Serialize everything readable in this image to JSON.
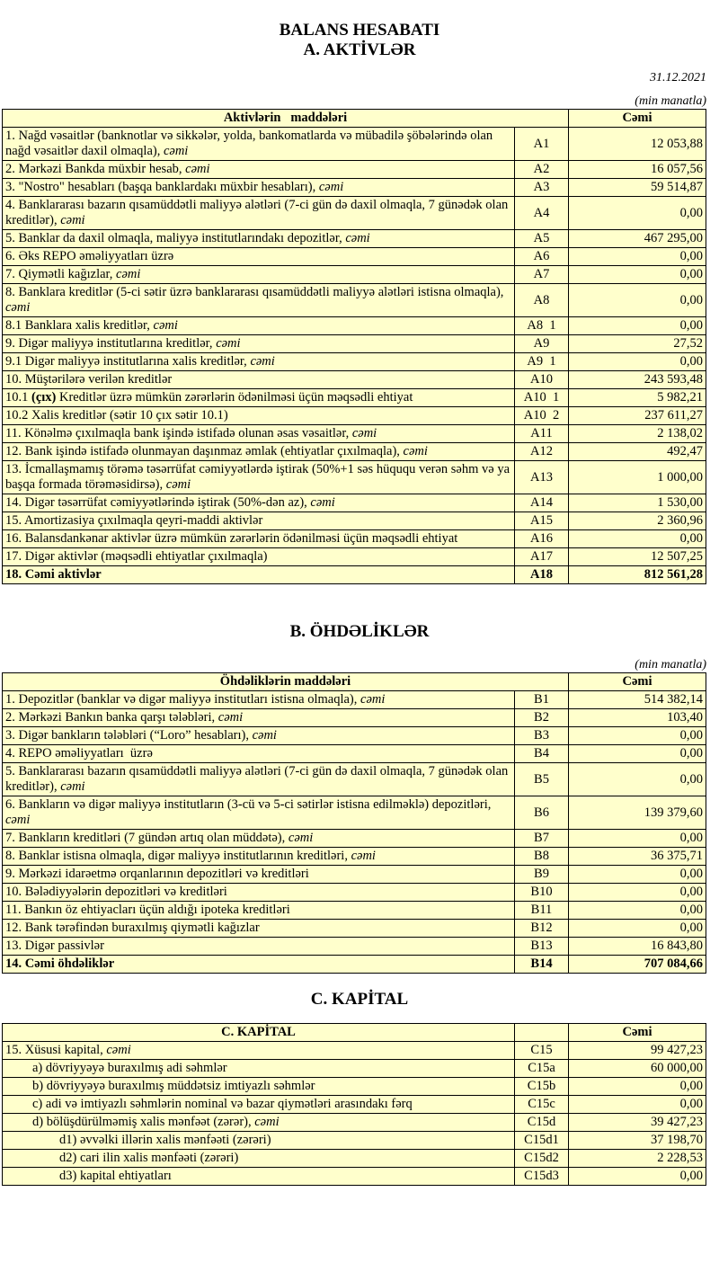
{
  "header": {
    "title": "BALANS HESABATI",
    "subtitle": "A. AKTİVLƏR",
    "date": "31.12.2021",
    "unit": "(min manatla)"
  },
  "assets": {
    "col_item": "Aktivlərin   maddələri",
    "col_total": "Cəmi",
    "rows": [
      {
        "parts": [
          {
            "t": "1. Nağd vəsaitlər (banknotlar və sikkələr, yolda, bankomatlarda və mübadilə şöbələrində olan nağd vəsaitlər daxil olmaqla), "
          },
          {
            "t": "cəmi",
            "s": "i"
          }
        ],
        "code": "A1",
        "value": "12 053,88"
      },
      {
        "parts": [
          {
            "t": "2. Mərkəzi Bankda müxbir hesab, "
          },
          {
            "t": "cəmi",
            "s": "i"
          }
        ],
        "code": "A2",
        "value": "16 057,56"
      },
      {
        "parts": [
          {
            "t": "3. \"Nostro\" hesabları (başqa banklardakı müxbir hesabları), "
          },
          {
            "t": "cəmi",
            "s": "i"
          }
        ],
        "code": "A3",
        "value": "59 514,87"
      },
      {
        "parts": [
          {
            "t": "4. Banklararası bazarın qısamüddətli maliyyə alətləri (7-ci gün də daxil olmaqla, 7 günədək olan kreditlər), "
          },
          {
            "t": "cəmi",
            "s": "i"
          }
        ],
        "code": "A4",
        "value": "0,00"
      },
      {
        "parts": [
          {
            "t": "5. Banklar da daxil olmaqla, maliyyə institutlarındakı depozitlər, "
          },
          {
            "t": "cəmi",
            "s": "i"
          }
        ],
        "code": "A5",
        "value": "467 295,00"
      },
      {
        "parts": [
          {
            "t": "6. Əks REPO əməliyyatları üzrə"
          }
        ],
        "code": "A6",
        "value": "0,00"
      },
      {
        "parts": [
          {
            "t": "7. Qiymətli kağızlar, "
          },
          {
            "t": "cəmi",
            "s": "i"
          }
        ],
        "code": "A7",
        "value": "0,00"
      },
      {
        "parts": [
          {
            "t": "8. Banklara kreditlər (5-ci sətir üzrə banklararası qısamüddətli maliyyə alətləri istisna olmaqla), "
          },
          {
            "t": "cəmi",
            "s": "i"
          }
        ],
        "code": "A8",
        "value": "0,00"
      },
      {
        "parts": [
          {
            "t": "8.1 Banklara xalis kreditlər, "
          },
          {
            "t": "cəmi",
            "s": "i"
          }
        ],
        "code": "A8  1",
        "value": "0,00"
      },
      {
        "parts": [
          {
            "t": "9. Digər maliyyə institutlarına kreditlər, "
          },
          {
            "t": "cəmi",
            "s": "i"
          }
        ],
        "code": "A9",
        "value": "27,52"
      },
      {
        "parts": [
          {
            "t": "9.1 Digər maliyyə institutlarına xalis kreditlər, "
          },
          {
            "t": "cəmi",
            "s": "i"
          }
        ],
        "code": "A9  1",
        "value": "0,00"
      },
      {
        "parts": [
          {
            "t": "10. Müştərilərə verilən kreditlər"
          }
        ],
        "code": "A10",
        "value": "243 593,48"
      },
      {
        "parts": [
          {
            "t": "10.1 "
          },
          {
            "t": "(çıx)",
            "s": "b"
          },
          {
            "t": " Kreditlər üzrə mümkün zərərlərin ödənilməsi üçün məqsədli ehtiyat"
          }
        ],
        "code": "A10  1",
        "value": "5 982,21"
      },
      {
        "parts": [
          {
            "t": "10.2 Xalis kreditlər (sətir 10 çıx sətir 10.1)"
          }
        ],
        "code": "A10  2",
        "value": "237 611,27"
      },
      {
        "parts": [
          {
            "t": "11. Könəlmə çıxılmaqla bank işində istifadə olunan əsas vəsaitlər, "
          },
          {
            "t": "cəmi",
            "s": "i"
          }
        ],
        "code": "A11",
        "value": "2 138,02"
      },
      {
        "parts": [
          {
            "t": "12. Bank işində istifadə olunmayan daşınmaz əmlak (ehtiyatlar çıxılmaqla), "
          },
          {
            "t": "cəmi",
            "s": "i"
          }
        ],
        "code": "A12",
        "value": "492,47"
      },
      {
        "parts": [
          {
            "t": "13. İcmallaşmamış törəmə təsərrüfat cəmiyyətlərdə iştirak (50%+1 səs hüququ verən səhm və ya başqa formada törəməsidirsə), "
          },
          {
            "t": "cəmi",
            "s": "i"
          }
        ],
        "code": "A13",
        "value": "1 000,00"
      },
      {
        "parts": [
          {
            "t": "14. Digər təsərrüfat cəmiyyətlərində iştirak (50%-dən az), "
          },
          {
            "t": "cəmi",
            "s": "i"
          }
        ],
        "code": "A14",
        "value": "1 530,00"
      },
      {
        "parts": [
          {
            "t": "15. Amortizasiya çıxılmaqla qeyri-maddi aktivlər"
          }
        ],
        "code": "A15",
        "value": "2 360,96"
      },
      {
        "parts": [
          {
            "t": "16. Balansdankənar aktivlər üzrə mümkün zərərlərin ödənilməsi üçün məqsədli ehtiyat"
          }
        ],
        "code": "A16",
        "value": "0,00"
      },
      {
        "parts": [
          {
            "t": "17. Digər aktivlər (məqsədli ehtiyatlar çıxılmaqla)"
          }
        ],
        "code": "A17",
        "value": "12 507,25"
      },
      {
        "parts": [
          {
            "t": "18. Cəmi aktivlər"
          }
        ],
        "code": "A18",
        "value": "812 561,28",
        "bold": true
      }
    ]
  },
  "liabilities": {
    "title": "B. ÖHDƏLİKLƏR",
    "unit": "(min manatla)",
    "col_item": "Öhdəliklərin maddələri",
    "col_total": "Cəmi",
    "rows": [
      {
        "parts": [
          {
            "t": "1. Depozitlər (banklar və digər maliyyə institutları istisna olmaqla), "
          },
          {
            "t": "cəmi",
            "s": "i"
          }
        ],
        "code": "B1",
        "value": "514 382,14"
      },
      {
        "parts": [
          {
            "t": "2. Mərkəzi Bankın banka qarşı tələbləri, "
          },
          {
            "t": "cəmi",
            "s": "i"
          }
        ],
        "code": "B2",
        "value": "103,40"
      },
      {
        "parts": [
          {
            "t": "3. Digər bankların tələbləri (“Loro” hesabları), "
          },
          {
            "t": "cəmi",
            "s": "i"
          }
        ],
        "code": "B3",
        "value": "0,00"
      },
      {
        "parts": [
          {
            "t": "4. REPO əməliyyatları  üzrə"
          }
        ],
        "code": "B4",
        "value": "0,00"
      },
      {
        "parts": [
          {
            "t": "5. Banklararası bazarın qısamüddətli maliyyə alətləri (7-ci gün də daxil olmaqla, 7 günədək olan kreditlər), "
          },
          {
            "t": "cəmi",
            "s": "i"
          }
        ],
        "code": "B5",
        "value": "0,00"
      },
      {
        "parts": [
          {
            "t": "6. Bankların və digər maliyyə institutların (3-cü və 5-ci sətirlər istisna edilməklə) depozitləri, "
          },
          {
            "t": "cəmi",
            "s": "i"
          }
        ],
        "code": "B6",
        "value": "139 379,60"
      },
      {
        "parts": [
          {
            "t": "7. Bankların kreditləri (7 gündən artıq olan müddətə), "
          },
          {
            "t": "cəmi",
            "s": "i"
          }
        ],
        "code": "B7",
        "value": "0,00"
      },
      {
        "parts": [
          {
            "t": "8. Banklar istisna olmaqla, digər maliyyə institutlarının kreditləri, "
          },
          {
            "t": "cəmi",
            "s": "i"
          }
        ],
        "code": "B8",
        "value": "36 375,71"
      },
      {
        "parts": [
          {
            "t": "9. Mərkəzi idarəetmə orqanlarının depozitləri və kreditləri"
          }
        ],
        "code": "B9",
        "value": "0,00"
      },
      {
        "parts": [
          {
            "t": "10. Bələdiyyələrin depozitləri və kreditləri"
          }
        ],
        "code": "B10",
        "value": "0,00"
      },
      {
        "parts": [
          {
            "t": "11. Bankın öz ehtiyacları üçün aldığı ipoteka kreditləri"
          }
        ],
        "code": "B11",
        "value": "0,00"
      },
      {
        "parts": [
          {
            "t": "12. Bank tərəfindən buraxılmış qiymətli kağızlar"
          }
        ],
        "code": "B12",
        "value": "0,00"
      },
      {
        "parts": [
          {
            "t": "13. Digər passivlər"
          }
        ],
        "code": "B13",
        "value": "16 843,80"
      },
      {
        "parts": [
          {
            "t": "14. Cəmi öhdəliklər"
          }
        ],
        "code": "B14",
        "value": "707 084,66",
        "bold": true
      }
    ]
  },
  "capital": {
    "title": "C. KAPİTAL",
    "col_item": "C. KAPİTAL",
    "col_total": "Cəmi",
    "rows": [
      {
        "parts": [
          {
            "t": "15. Xüsusi kapital, "
          },
          {
            "t": "cəmi",
            "s": "i"
          }
        ],
        "code": "C15",
        "value": "99 427,23",
        "indent": 0
      },
      {
        "parts": [
          {
            "t": "a) dövriyyəyə buraxılmış adi səhmlər"
          }
        ],
        "code": "C15a",
        "value": "60 000,00",
        "indent": 1
      },
      {
        "parts": [
          {
            "t": "b) dövriyyəyə buraxılmış müddətsiz imtiyazlı səhmlər"
          }
        ],
        "code": "C15b",
        "value": "0,00",
        "indent": 1
      },
      {
        "parts": [
          {
            "t": "c) adi və imtiyazlı səhmlərin nominal və bazar qiymətləri arasındakı fərq"
          }
        ],
        "code": "C15c",
        "value": "0,00",
        "indent": 1
      },
      {
        "parts": [
          {
            "t": "d) bölüşdürülməmiş xalis mənfəət (zərər), "
          },
          {
            "t": "cəmi",
            "s": "i"
          }
        ],
        "code": "C15d",
        "value": "39 427,23",
        "indent": 1
      },
      {
        "parts": [
          {
            "t": "d1) əvvəlki illərin xalis mənfəəti (zərəri)"
          }
        ],
        "code": "C15d1",
        "value": "37 198,70",
        "indent": 2
      },
      {
        "parts": [
          {
            "t": "d2) cari ilin xalis mənfəəti (zərəri)"
          }
        ],
        "code": "C15d2",
        "value": "2 228,53",
        "indent": 2
      },
      {
        "parts": [
          {
            "t": "d3) kapital ehtiyatları"
          }
        ],
        "code": "C15d3",
        "value": "0,00",
        "indent": 2
      }
    ]
  }
}
